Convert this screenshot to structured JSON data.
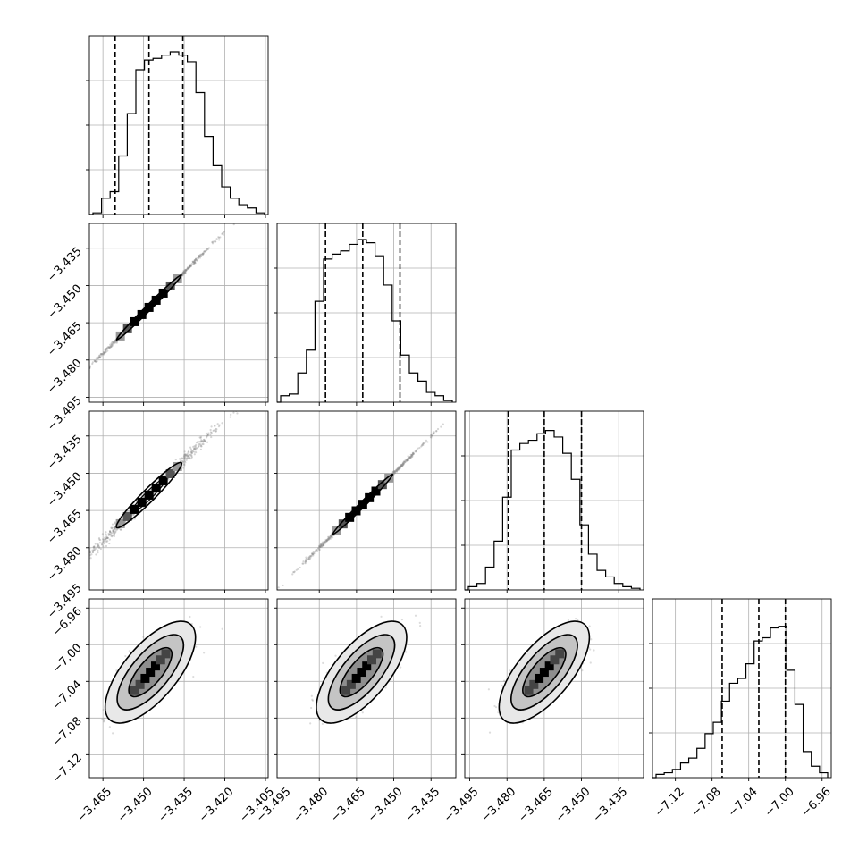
{
  "chart_data": {
    "type": "corner",
    "grid": true,
    "dimensions": [
      {
        "range": [
          -3.47,
          -3.404
        ],
        "ticks": [
          -3.465,
          -3.45,
          -3.435,
          -3.42,
          -3.405
        ],
        "tick_labels": [
          "−3.465",
          "−3.450",
          "−3.435",
          "−3.420",
          "−3.405"
        ],
        "quantiles": [
          -3.4605,
          -3.448,
          -3.4355
        ],
        "histogram": [
          0.01,
          0.1,
          0.14,
          0.36,
          0.62,
          0.89,
          0.95,
          0.96,
          0.98,
          1.0,
          0.98,
          0.94,
          0.75,
          0.48,
          0.3,
          0.17,
          0.1,
          0.06,
          0.04,
          0.01
        ]
      },
      {
        "range": [
          -3.497,
          -3.425
        ],
        "ticks": [
          -3.495,
          -3.48,
          -3.465,
          -3.45,
          -3.435
        ],
        "tick_labels": [
          "−3.495",
          "−3.480",
          "−3.465",
          "−3.450",
          "−3.435"
        ],
        "quantiles": [
          -3.4775,
          -3.4625,
          -3.4475
        ],
        "histogram": [
          0.04,
          0.05,
          0.18,
          0.32,
          0.62,
          0.88,
          0.91,
          0.93,
          0.97,
          1.0,
          0.98,
          0.9,
          0.72,
          0.5,
          0.29,
          0.18,
          0.13,
          0.06,
          0.04,
          0.01
        ]
      },
      {
        "range": [
          -3.497,
          -3.425
        ],
        "ticks": [
          -3.495,
          -3.48,
          -3.465,
          -3.45,
          -3.435
        ],
        "tick_labels": [
          "−3.495",
          "−3.480",
          "−3.465",
          "−3.450",
          "−3.435"
        ],
        "quantiles": [
          -3.4795,
          -3.465,
          -3.45
        ],
        "histogram": [
          0.02,
          0.04,
          0.14,
          0.3,
          0.57,
          0.86,
          0.9,
          0.92,
          0.96,
          0.98,
          0.94,
          0.84,
          0.68,
          0.4,
          0.22,
          0.12,
          0.08,
          0.04,
          0.02,
          0.01
        ]
      },
      {
        "range": [
          -7.145,
          -6.95
        ],
        "ticks": [
          -7.12,
          -7.08,
          -7.04,
          -7.0,
          -6.96
        ],
        "tick_labels": [
          "−7.12",
          "−7.08",
          "−7.04",
          "−7.00",
          "−6.96"
        ],
        "quantiles": [
          -7.069,
          -7.029,
          -7.0
        ],
        "histogram": [
          0.02,
          0.03,
          0.05,
          0.09,
          0.12,
          0.18,
          0.27,
          0.34,
          0.47,
          0.58,
          0.61,
          0.7,
          0.84,
          0.86,
          0.92,
          0.93,
          0.66,
          0.45,
          0.16,
          0.07,
          0.03
        ]
      }
    ],
    "correlations": [
      {
        "row": 1,
        "col": 0,
        "slope": 1.09,
        "intercept": 0.2995,
        "spread_x": 0.0048,
        "spread_y": 0.0004
      },
      {
        "row": 2,
        "col": 0,
        "slope": 1.09,
        "intercept": 0.2995,
        "spread_x": 0.0048,
        "spread_y": 0.0012
      },
      {
        "row": 2,
        "col": 1,
        "slope": 1.0,
        "intercept": 0.0,
        "spread_x": 0.0048,
        "spread_y": 0.0004
      },
      {
        "row": 3,
        "col": 0,
        "center_x": -3.4475,
        "center_y": -7.03,
        "spread_x": 0.0062,
        "spread_y": 0.024,
        "rho": 0.72
      },
      {
        "row": 3,
        "col": 1,
        "center_x": -3.463,
        "center_y": -7.03,
        "spread_x": 0.0066,
        "spread_y": 0.024,
        "rho": 0.72
      },
      {
        "row": 3,
        "col": 2,
        "center_x": -3.465,
        "center_y": -7.03,
        "spread_x": 0.0066,
        "spread_y": 0.024,
        "rho": 0.72
      }
    ]
  }
}
